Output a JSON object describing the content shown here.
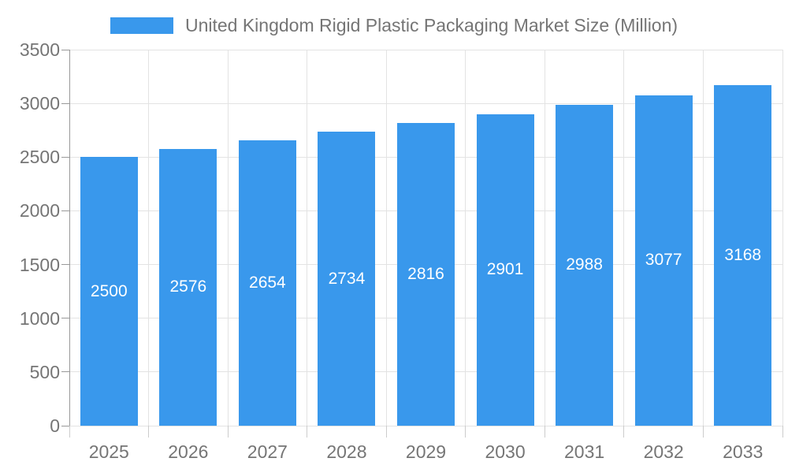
{
  "legend": {
    "label": "United Kingdom Rigid Plastic Packaging Market Size (Million)"
  },
  "chart_data": {
    "type": "bar",
    "title": "United Kingdom Rigid Plastic Packaging Market Size (Million)",
    "categories": [
      "2025",
      "2026",
      "2027",
      "2028",
      "2029",
      "2030",
      "2031",
      "2032",
      "2033"
    ],
    "values": [
      2500,
      2576,
      2654,
      2734,
      2816,
      2901,
      2988,
      3077,
      3168
    ],
    "xlabel": "",
    "ylabel": "",
    "ylim": [
      0,
      3500
    ],
    "yticks": [
      0,
      500,
      1000,
      1500,
      2000,
      2500,
      3000,
      3500
    ],
    "grid": true,
    "legend_position": "top",
    "bar_labels_inside": true
  },
  "colors": {
    "bar": "#3998EC",
    "bar_label": "#ffffff",
    "grid": "#e3e3e3",
    "axis_line": "#999999",
    "x_tick": "#cccccc",
    "text": "#757575",
    "background": "#ffffff"
  }
}
